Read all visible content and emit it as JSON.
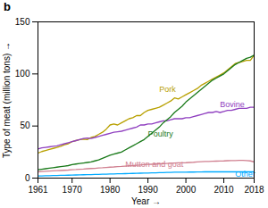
{
  "chart_data": {
    "type": "line",
    "title": "b",
    "x_label": "Year",
    "y_label": "Type of meat (million tons)",
    "x": [
      1961,
      1962,
      1963,
      1964,
      1965,
      1966,
      1967,
      1968,
      1969,
      1970,
      1971,
      1972,
      1973,
      1974,
      1975,
      1976,
      1977,
      1978,
      1979,
      1980,
      1981,
      1982,
      1983,
      1984,
      1985,
      1986,
      1987,
      1988,
      1989,
      1990,
      1991,
      1992,
      1993,
      1994,
      1995,
      1996,
      1997,
      1998,
      1999,
      2000,
      2001,
      2002,
      2003,
      2004,
      2005,
      2006,
      2007,
      2008,
      2009,
      2010,
      2011,
      2012,
      2013,
      2014,
      2015,
      2016,
      2017,
      2018
    ],
    "series": [
      {
        "name": "Pork",
        "color": "#b8a000",
        "values": [
          24,
          25.5,
          26.5,
          27.5,
          28.5,
          29.5,
          30.5,
          32,
          33,
          35,
          36,
          37,
          37.5,
          37,
          39,
          40,
          42,
          44,
          47,
          51,
          52,
          51,
          53,
          55,
          57,
          58,
          60,
          60,
          63,
          65,
          66,
          67,
          68,
          70,
          72,
          74,
          77,
          76,
          78,
          80,
          82,
          84,
          86,
          89,
          91,
          93,
          95,
          97,
          99,
          101,
          104,
          107,
          110,
          111,
          112,
          113,
          113,
          118
        ]
      },
      {
        "name": "Bovine",
        "color": "#9040c0",
        "values": [
          28,
          29,
          29.5,
          30,
          30.5,
          31,
          32,
          33,
          34,
          35,
          36,
          37,
          38,
          38.5,
          38,
          39,
          40,
          41,
          42,
          43,
          44,
          44.5,
          45,
          46,
          47,
          48,
          49,
          51,
          51,
          52,
          52,
          53,
          54,
          55,
          55,
          56,
          57,
          57,
          57,
          58,
          58,
          59,
          60,
          61,
          62,
          63,
          63,
          64,
          63,
          64,
          65,
          65,
          66,
          67,
          67,
          67,
          68,
          68
        ]
      },
      {
        "name": "Poultry",
        "color": "#1a7a1a",
        "values": [
          8,
          8.5,
          9,
          9.5,
          10,
          10.5,
          11,
          11.5,
          12,
          13,
          13.5,
          14,
          14.5,
          15,
          15.5,
          16.5,
          17.5,
          19,
          20.5,
          22,
          23,
          24,
          25,
          27,
          29,
          31,
          33,
          35,
          37,
          40,
          43,
          46,
          49,
          53,
          56,
          59,
          63,
          66,
          69,
          73,
          76,
          79,
          82,
          85,
          88,
          91,
          94,
          96,
          98,
          100,
          103,
          106,
          109,
          111,
          113,
          115,
          116,
          118
        ]
      },
      {
        "name": "Mutton and goat",
        "color": "#d08090",
        "values": [
          6.0,
          6.3,
          6.5,
          6.7,
          6.9,
          7.1,
          7.3,
          7.5,
          7.7,
          8.0,
          8.2,
          8.5,
          8.7,
          9.0,
          9.2,
          9.4,
          9.7,
          9.9,
          10.2,
          10.5,
          10.7,
          11.0,
          11.2,
          11.5,
          11.8,
          12.0,
          12.3,
          12.6,
          12.9,
          13.1,
          13.3,
          13.5,
          13.7,
          13.9,
          14.1,
          14.3,
          14.5,
          14.6,
          14.7,
          14.8,
          15.0,
          15.2,
          15.5,
          15.7,
          15.9,
          16.0,
          16.2,
          16.3,
          16.4,
          16.5,
          16.7,
          16.8,
          16.9,
          17.0,
          17.0,
          16.8,
          16.5,
          15.5
        ]
      },
      {
        "name": "Other",
        "color": "#00aaff",
        "values": [
          2.0,
          2.1,
          2.2,
          2.3,
          2.4,
          2.5,
          2.6,
          2.7,
          2.8,
          2.9,
          3.0,
          3.1,
          3.2,
          3.3,
          3.4,
          3.5,
          3.6,
          3.7,
          3.8,
          3.9,
          4.0,
          4.1,
          4.2,
          4.3,
          4.4,
          4.5,
          4.6,
          4.7,
          4.8,
          4.9,
          5.0,
          5.1,
          5.2,
          5.3,
          5.4,
          5.5,
          5.6,
          5.6,
          5.7,
          5.7,
          5.8,
          5.8,
          5.9,
          5.9,
          6.0,
          6.0,
          6.0,
          6.0,
          6.0,
          6.0,
          6.0,
          6.0,
          6.0,
          6.0,
          6.0,
          6.0,
          6.0,
          6.0
        ]
      }
    ],
    "annotations": [
      {
        "text": "Pork",
        "x": 1993,
        "y": 85
      },
      {
        "text": "Bovine",
        "x": 2009,
        "y": 71
      },
      {
        "text": "Poultry",
        "x": 1990,
        "y": 42
      },
      {
        "text": "Mutton and goat",
        "x": 1984,
        "y": 13.5
      },
      {
        "text": "Other",
        "x": 2013,
        "y": 3.8
      }
    ],
    "xlim": [
      1961,
      2018
    ],
    "xticks": [
      1961,
      1970,
      1980,
      1990,
      2000,
      2010,
      2018
    ],
    "ylim": [
      0,
      150
    ],
    "yticks": [
      0,
      50,
      100,
      150
    ],
    "grid": false
  }
}
